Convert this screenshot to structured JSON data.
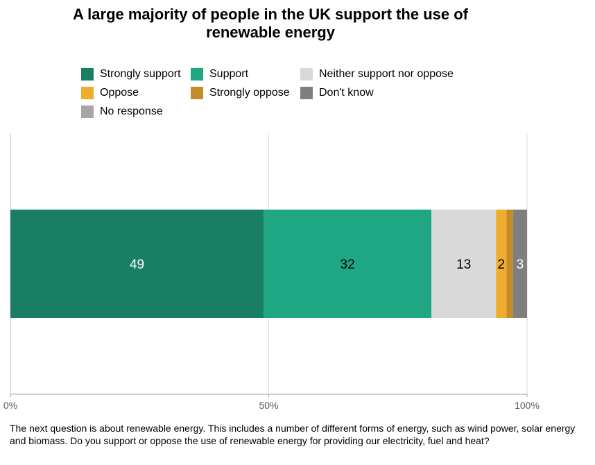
{
  "chart_data": {
    "type": "bar",
    "orientation": "horizontal",
    "stacked": true,
    "title": "A large majority of people in the UK support the use of renewable energy",
    "xlim": [
      0,
      100
    ],
    "x_ticks": [
      "0%",
      "50%",
      "100%"
    ],
    "x_tick_values": [
      0,
      50,
      100
    ],
    "grid": true,
    "legend_position": "top",
    "categories": [
      ""
    ],
    "series": [
      {
        "name": "Strongly support",
        "values": [
          49
        ],
        "label": "49",
        "color": "#1a7e65",
        "label_color": "#ffffff"
      },
      {
        "name": "Support",
        "values": [
          32.5
        ],
        "label": "32",
        "color": "#1fa784",
        "label_color": "#000000"
      },
      {
        "name": "Neither support nor oppose",
        "values": [
          12.5
        ],
        "label": "13",
        "color": "#d9d9d9",
        "label_color": "#000000"
      },
      {
        "name": "Oppose",
        "values": [
          2
        ],
        "label": "2",
        "color": "#f0ac2c",
        "label_color": "#000000"
      },
      {
        "name": "Strongly oppose",
        "values": [
          1.3
        ],
        "label": "",
        "color": "#c48c28",
        "label_color": "#000000"
      },
      {
        "name": "Don't know",
        "values": [
          2.7
        ],
        "label": "3",
        "color": "#7f7f7f",
        "label_color": "#ffffff"
      },
      {
        "name": "No response",
        "values": [
          0
        ],
        "label": "",
        "color": "#a6a6a6",
        "label_color": "#000000"
      }
    ]
  },
  "footnote": "The next question is about renewable energy. This includes a number of different forms of energy, such as wind power, solar energy and biomass. Do you support or oppose the use of renewable energy for providing our electricity, fuel and heat?"
}
